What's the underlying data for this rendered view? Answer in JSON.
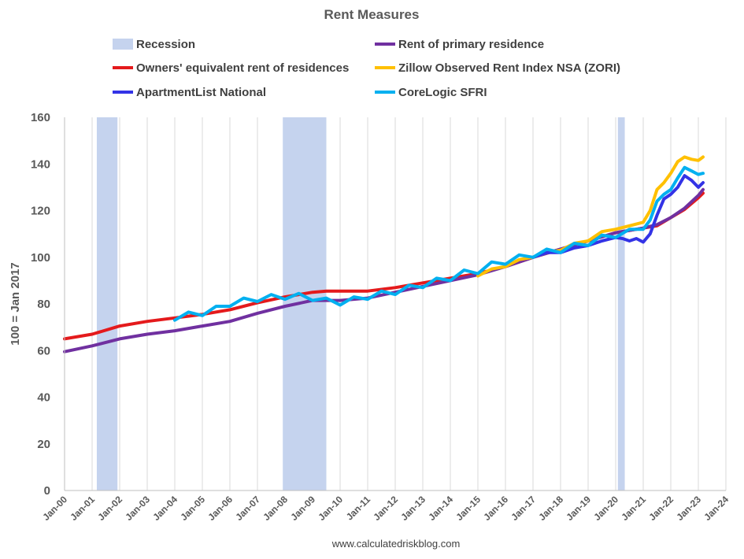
{
  "chart_data": {
    "type": "line",
    "title": "Rent Measures",
    "ylabel": "100 = Jan 2017",
    "xlabel": "",
    "footer": "www.calculatedriskblog.com",
    "ylim": [
      0,
      160
    ],
    "yticks": [
      0,
      20,
      40,
      60,
      80,
      100,
      120,
      140,
      160
    ],
    "xlim": [
      2000,
      2024
    ],
    "xticks": [
      "Jan-00",
      "Jan-01",
      "Jan-02",
      "Jan-03",
      "Jan-04",
      "Jan-05",
      "Jan-06",
      "Jan-07",
      "Jan-08",
      "Jan-09",
      "Jan-10",
      "Jan-11",
      "Jan-12",
      "Jan-13",
      "Jan-14",
      "Jan-15",
      "Jan-16",
      "Jan-17",
      "Jan-18",
      "Jan-19",
      "Jan-20",
      "Jan-21",
      "Jan-22",
      "Jan-23",
      "Jan-24"
    ],
    "grid": "vertical",
    "legend_position": "top",
    "legend": [
      {
        "name": "Recession",
        "color": "#c5d3ee",
        "kind": "band"
      },
      {
        "name": "Rent of primary residence",
        "color": "#7030a0",
        "kind": "line"
      },
      {
        "name": "Owners' equivalent rent of residences",
        "color": "#e41a1c",
        "kind": "line"
      },
      {
        "name": "Zillow Observed Rent Index NSA (ZORI)",
        "color": "#ffc000",
        "kind": "line"
      },
      {
        "name": "ApartmentList National",
        "color": "#3333e6",
        "kind": "line"
      },
      {
        "name": "CoreLogic SFRI",
        "color": "#00b0f0",
        "kind": "line"
      }
    ],
    "recessions": [
      {
        "start": 2001.17,
        "end": 2001.92
      },
      {
        "start": 2007.92,
        "end": 2009.5
      },
      {
        "start": 2020.08,
        "end": 2020.33
      }
    ],
    "series": [
      {
        "name": "Owners' equivalent rent of residences",
        "color": "#e41a1c",
        "x": [
          2000,
          2001,
          2002,
          2003,
          2004,
          2005,
          2006,
          2007,
          2008,
          2009,
          2009.5,
          2010,
          2011,
          2012,
          2013,
          2014,
          2015,
          2016,
          2017,
          2018,
          2019,
          2020,
          2021,
          2021.5,
          2022,
          2022.5,
          2023,
          2023.17
        ],
        "y": [
          65,
          67,
          70.5,
          72.5,
          74,
          75.5,
          77.5,
          80.5,
          83,
          85,
          85.5,
          85.5,
          85.5,
          87,
          89,
          91,
          93,
          96,
          100,
          103.5,
          107,
          110.5,
          112.5,
          113.5,
          117,
          120.5,
          125.5,
          127.5
        ]
      },
      {
        "name": "Rent of primary residence",
        "color": "#7030a0",
        "x": [
          2000,
          2001,
          2002,
          2003,
          2004,
          2005,
          2006,
          2007,
          2008,
          2009,
          2010,
          2011,
          2012,
          2013,
          2014,
          2015,
          2016,
          2017,
          2018,
          2019,
          2020,
          2021,
          2021.5,
          2022,
          2022.5,
          2023,
          2023.17
        ],
        "y": [
          59.5,
          62,
          65,
          67,
          68.5,
          70.5,
          72.5,
          76,
          79,
          81.5,
          81.5,
          82.5,
          85,
          87.5,
          90,
          92.5,
          96,
          100,
          103.5,
          107,
          110.5,
          112.5,
          114,
          117,
          121,
          126.5,
          129
        ]
      },
      {
        "name": "Zillow Observed Rent Index NSA (ZORI)",
        "color": "#ffc000",
        "x": [
          2015,
          2015.5,
          2016,
          2016.5,
          2017,
          2017.5,
          2018,
          2018.5,
          2019,
          2019.5,
          2020,
          2020.5,
          2021,
          2021.25,
          2021.5,
          2021.75,
          2022,
          2022.25,
          2022.5,
          2022.75,
          2023,
          2023.17
        ],
        "y": [
          92,
          95,
          96,
          99,
          100,
          102,
          103,
          106,
          107,
          111,
          112,
          113.5,
          115,
          120,
          129,
          132,
          136,
          141,
          143,
          142,
          141.5,
          143
        ]
      },
      {
        "name": "ApartmentList National",
        "color": "#3333e6",
        "x": [
          2017,
          2017.5,
          2018,
          2018.5,
          2019,
          2019.5,
          2020,
          2020.25,
          2020.5,
          2020.75,
          2021,
          2021.25,
          2021.5,
          2021.75,
          2022,
          2022.25,
          2022.5,
          2022.75,
          2023,
          2023.17
        ],
        "y": [
          100,
          102,
          102,
          104,
          105,
          107,
          108.5,
          108,
          107,
          108,
          106.5,
          110,
          118,
          125,
          127,
          130,
          135,
          133,
          130,
          132
        ]
      },
      {
        "name": "CoreLogic SFRI",
        "color": "#00b0f0",
        "x": [
          2004,
          2004.5,
          2005,
          2005.5,
          2006,
          2006.5,
          2007,
          2007.5,
          2008,
          2008.5,
          2009,
          2009.5,
          2010,
          2010.5,
          2011,
          2011.5,
          2012,
          2012.5,
          2013,
          2013.5,
          2014,
          2014.5,
          2015,
          2015.5,
          2016,
          2016.5,
          2017,
          2017.5,
          2018,
          2018.5,
          2019,
          2019.5,
          2020,
          2020.5,
          2021,
          2021.25,
          2021.5,
          2021.75,
          2022,
          2022.25,
          2022.5,
          2022.75,
          2023,
          2023.17
        ],
        "y": [
          73,
          76.5,
          75,
          79,
          79,
          82.5,
          81,
          84,
          82,
          84.5,
          81.5,
          82.5,
          79.5,
          83,
          82,
          85.5,
          84,
          88,
          87,
          91,
          90,
          94.5,
          93,
          98,
          97,
          101,
          100,
          103.5,
          102,
          106,
          105,
          109.5,
          108.5,
          112,
          112,
          116,
          124,
          127,
          129,
          134,
          138.5,
          137,
          135.5,
          136
        ]
      }
    ]
  }
}
